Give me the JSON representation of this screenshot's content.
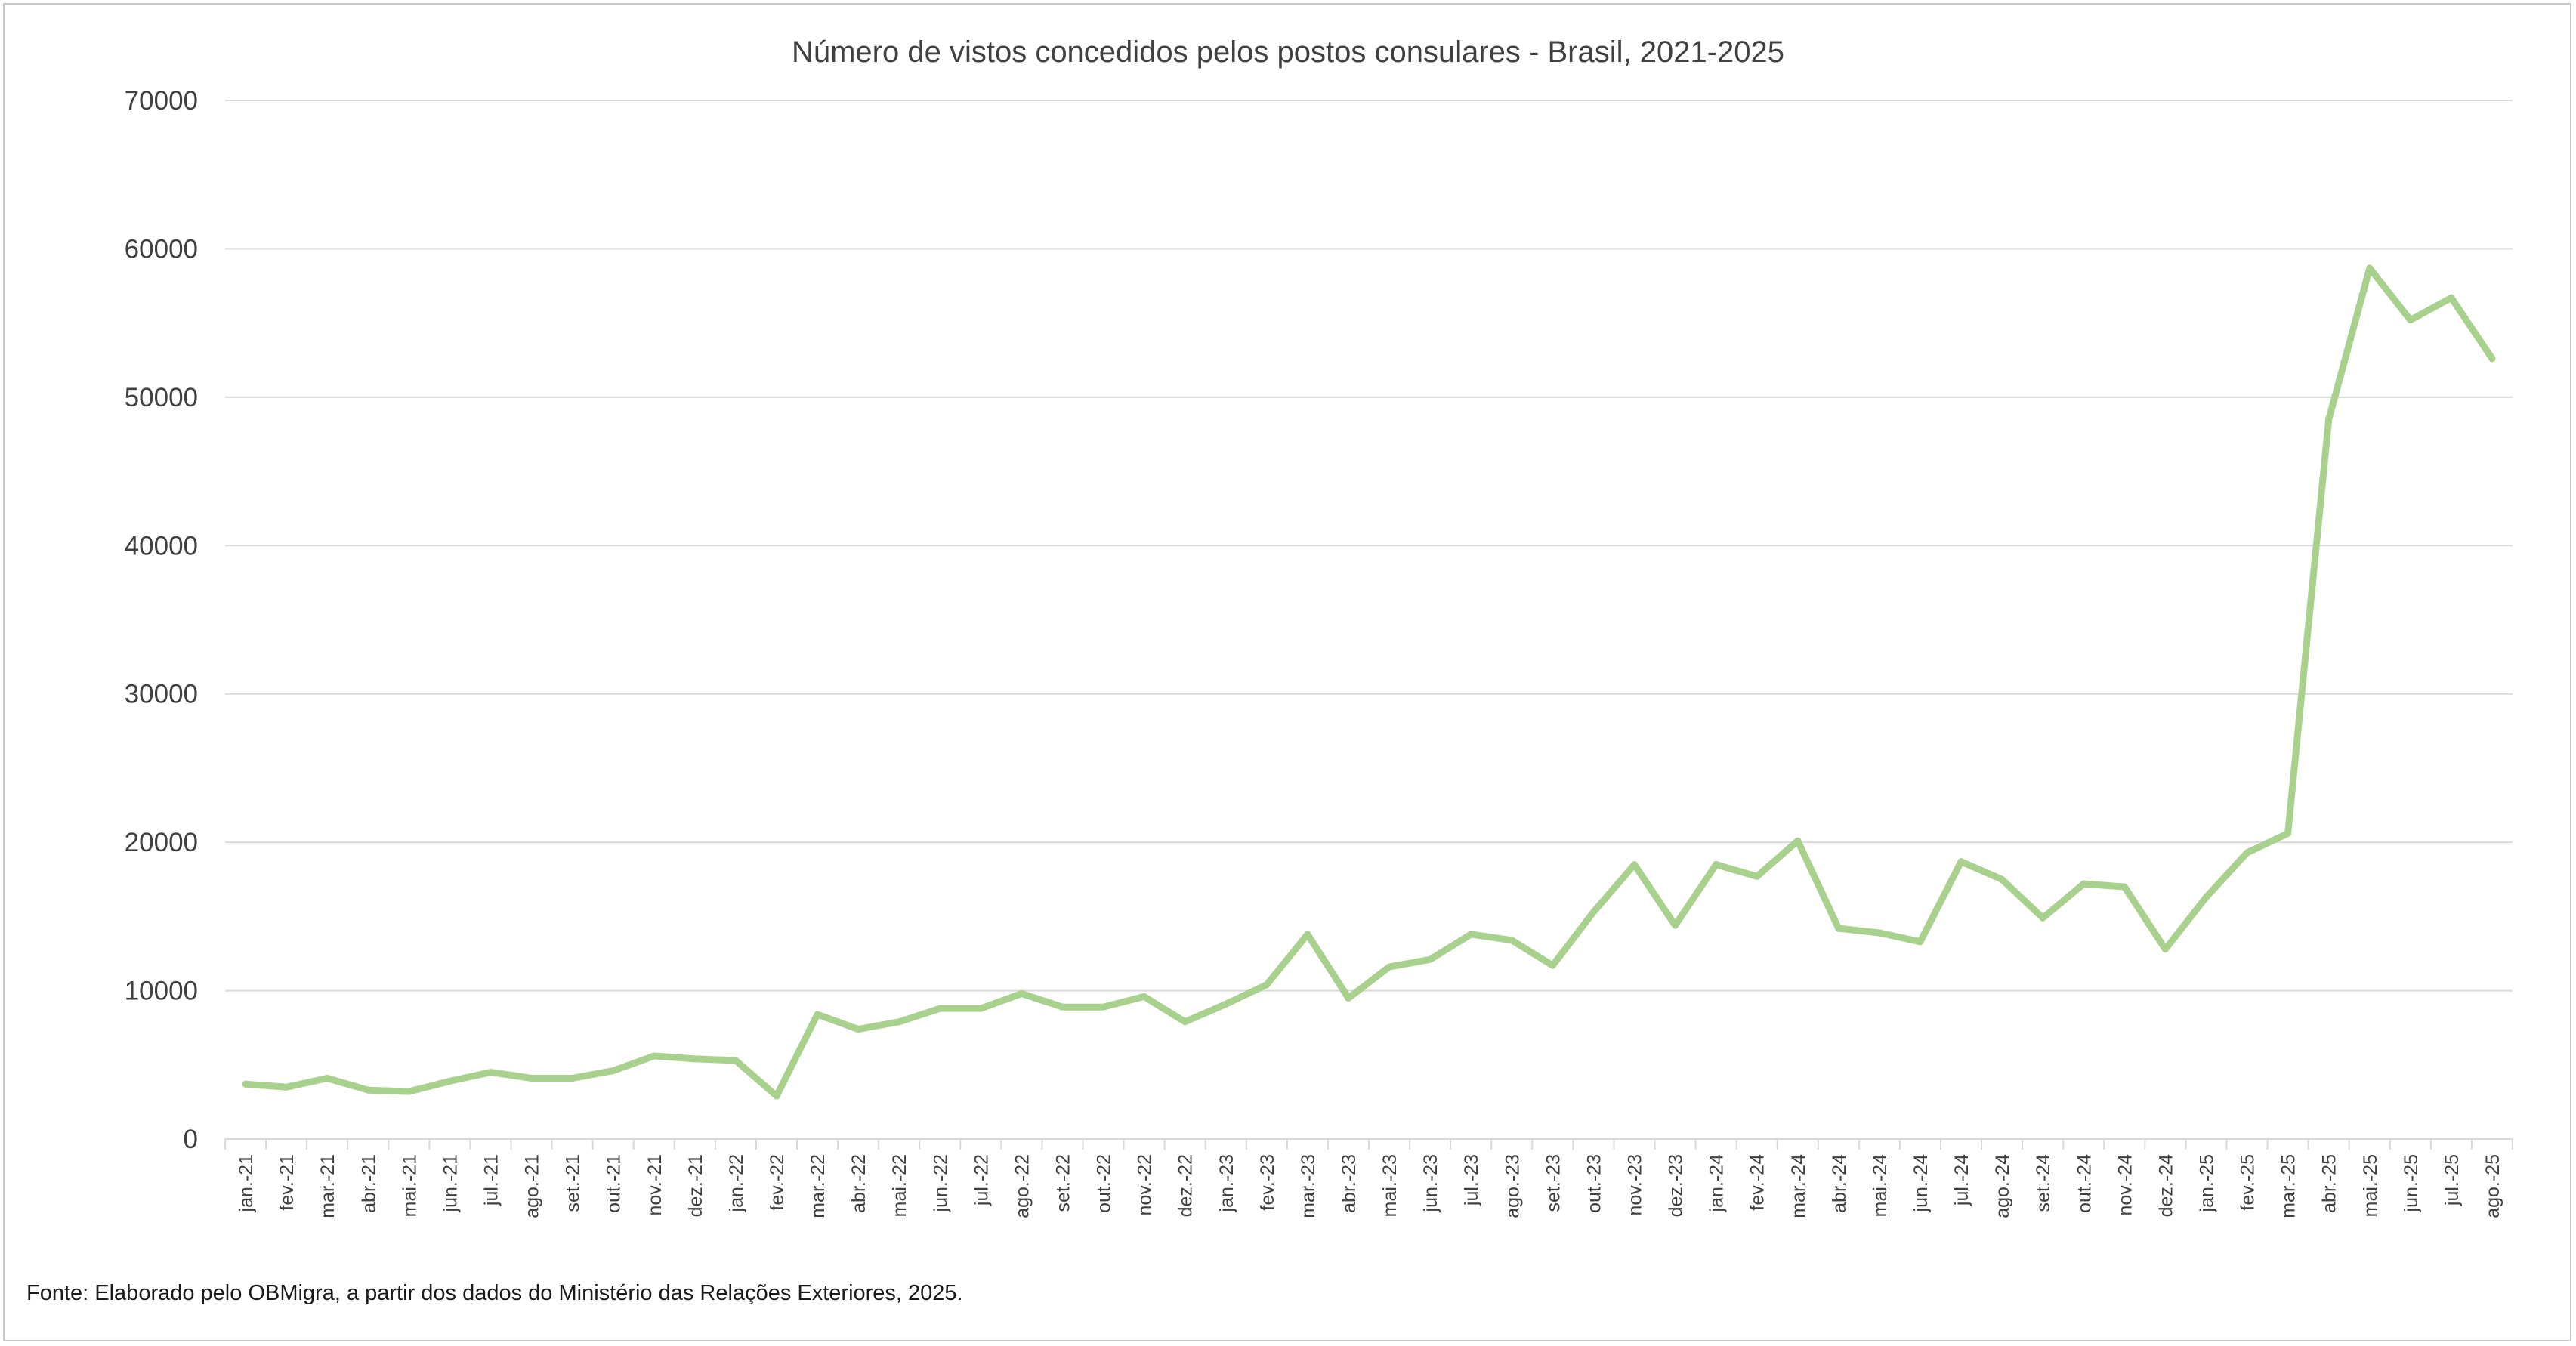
{
  "chart_data": {
    "type": "line",
    "title": "Número de vistos concedidos pelos postos consulares - Brasil, 2021-2025",
    "xlabel": "",
    "ylabel": "",
    "ylim": [
      0,
      70000
    ],
    "yticks": [
      "0",
      "10000",
      "20000",
      "30000",
      "40000",
      "50000",
      "60000",
      "70000"
    ],
    "grid": true,
    "legend": "none",
    "line_color": "#a9d18e",
    "gridline_color": "#d9d9d9",
    "categories": [
      "jan.-21",
      "fev.-21",
      "mar.-21",
      "abr.-21",
      "mai.-21",
      "jun.-21",
      "jul.-21",
      "ago.-21",
      "set.-21",
      "out.-21",
      "nov.-21",
      "dez.-21",
      "jan.-22",
      "fev.-22",
      "mar.-22",
      "abr.-22",
      "mai.-22",
      "jun.-22",
      "jul.-22",
      "ago.-22",
      "set.-22",
      "out.-22",
      "nov.-22",
      "dez.-22",
      "jan.-23",
      "fev.-23",
      "mar.-23",
      "abr.-23",
      "mai.-23",
      "jun.-23",
      "jul.-23",
      "ago.-23",
      "set.-23",
      "out.-23",
      "nov.-23",
      "dez.-23",
      "jan.-24",
      "fev.-24",
      "mar.-24",
      "abr.-24",
      "mai.-24",
      "jun.-24",
      "jul.-24",
      "ago.-24",
      "set.-24",
      "out.-24",
      "nov.-24",
      "dez.-24",
      "jan.-25",
      "fev.-25",
      "mar.-25",
      "abr.-25",
      "mai.-25",
      "jun.-25",
      "jul.-25",
      "ago.-25"
    ],
    "values": [
      3700,
      3500,
      4100,
      3300,
      3200,
      3900,
      4500,
      4100,
      4100,
      4600,
      5600,
      5400,
      5300,
      2900,
      8400,
      7400,
      7900,
      8800,
      8800,
      9800,
      8900,
      8900,
      9600,
      7900,
      9100,
      10400,
      13800,
      9500,
      11600,
      12100,
      13800,
      13400,
      11700,
      15300,
      18500,
      14400,
      18500,
      17700,
      20100,
      14200,
      13900,
      13300,
      18700,
      17500,
      14900,
      17200,
      17000,
      12800,
      16300,
      19300,
      20600,
      48500,
      58700,
      55200,
      56700,
      52600
    ]
  },
  "footer": {
    "source": "Fonte: Elaborado pelo OBMigra, a partir dos dados do Ministério das Relações Exteriores, 2025."
  }
}
